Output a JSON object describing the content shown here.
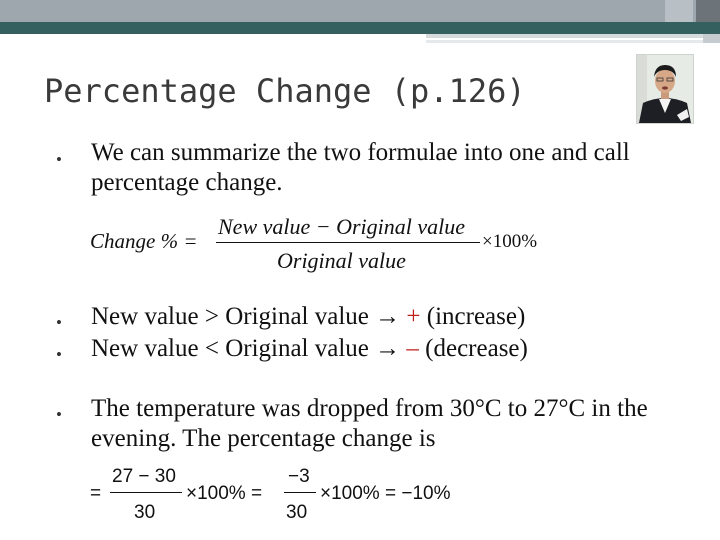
{
  "slide": {
    "title": "Percentage Change (p.126)",
    "bullets": [
      {
        "marker": "•",
        "text": "We can summarize the two formulae into one and call percentage change."
      },
      {
        "marker": "•",
        "text_before": "New value > Original value ",
        "arrow": "→",
        "symbol": "+",
        "text_after": " (increase)"
      },
      {
        "marker": "•",
        "text_before": "New value < Original value ",
        "arrow": "→",
        "symbol": "–",
        "text_after": " (decrease)"
      },
      {
        "marker": "•",
        "text": "The temperature was dropped from 30°C to 27°C in the evening. The percentage change is"
      }
    ],
    "formula": {
      "lhs": "Change % =",
      "numerator": "New value − Original value",
      "denominator": "Original value",
      "tail": "×100%"
    },
    "calculation": {
      "eq1": "=",
      "num1": "27 − 30",
      "den1": "30",
      "mul1": "×100% =",
      "num2": "−3",
      "den2": "30",
      "mul2": "×100% = −10%"
    }
  },
  "colors": {
    "accent_bar": "#34605f",
    "top_bar": "#9ea7ad",
    "highlight": "#c0211b"
  },
  "images": {
    "presenter_photo": "person-photo"
  }
}
